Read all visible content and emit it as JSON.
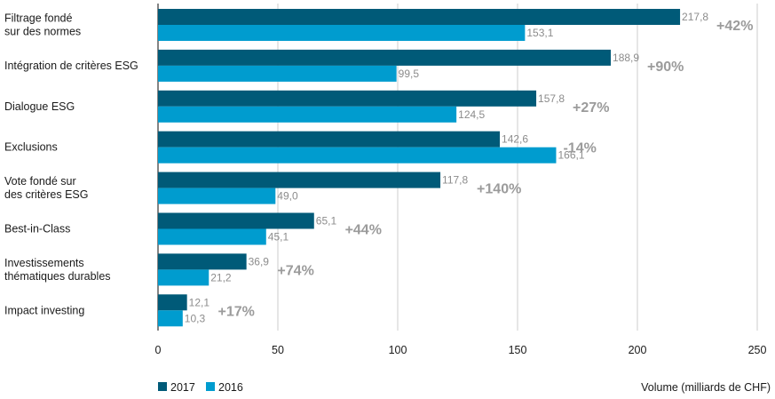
{
  "chart_data": {
    "type": "bar",
    "orientation": "horizontal",
    "categories": [
      [
        "Filtrage fondé",
        "sur des normes"
      ],
      [
        "Intégration de critères ESG"
      ],
      [
        "Dialogue ESG"
      ],
      [
        "Exclusions"
      ],
      [
        "Vote fondé sur",
        "des critères ESG"
      ],
      [
        "Best-in-Class"
      ],
      [
        "Investissements",
        "thématiques durables"
      ],
      [
        "Impact investing"
      ]
    ],
    "series": [
      {
        "name": "2017",
        "color": "#005a78",
        "values": [
          217.8,
          188.9,
          157.8,
          142.6,
          117.8,
          65.1,
          36.9,
          12.1
        ],
        "labels": [
          "217,8",
          "188,9",
          "157,8",
          "142,6",
          "117,8",
          "65,1",
          "36,9",
          "12,1"
        ]
      },
      {
        "name": "2016",
        "color": "#009ccf",
        "values": [
          153.1,
          99.5,
          124.5,
          166.1,
          49.0,
          45.1,
          21.2,
          10.3
        ],
        "labels": [
          "153,1",
          "99,5",
          "124,5",
          "166,1",
          "49,0",
          "45,1",
          "21,2",
          "10,3"
        ]
      }
    ],
    "changes": [
      "+42%",
      "+90%",
      "+27%",
      "-14%",
      "+140%",
      "+44%",
      "+74%",
      "+17%"
    ],
    "xlim": [
      0,
      250
    ],
    "xticks": [
      0,
      50,
      100,
      150,
      200,
      250
    ],
    "xlabel": "Volume (milliards de CHF)",
    "grid": true,
    "legend_position": "bottom-left"
  }
}
